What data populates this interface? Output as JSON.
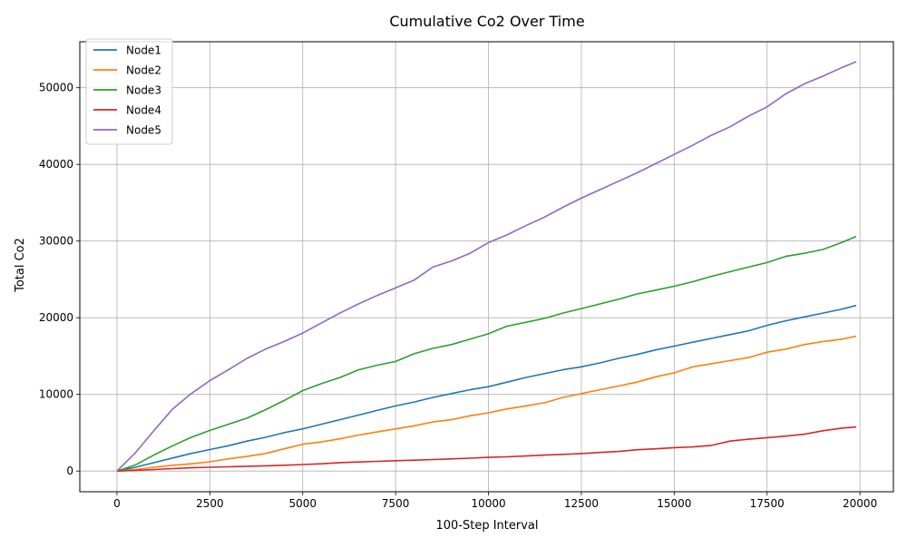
{
  "chart_data": {
    "type": "line",
    "title": "Cumulative Co2 Over Time",
    "xlabel": "100-Step Interval",
    "ylabel": "Total Co2",
    "xlim": [
      -1000,
      20900
    ],
    "ylim": [
      -2700,
      56000
    ],
    "grid": true,
    "legend_position": "top-left",
    "x_ticks": [
      0,
      2500,
      5000,
      7500,
      10000,
      12500,
      15000,
      17500,
      20000
    ],
    "x_tick_labels": [
      "0",
      "2500",
      "5000",
      "7500",
      "10000",
      "12500",
      "15000",
      "17500",
      "20000"
    ],
    "y_ticks": [
      0,
      10000,
      20000,
      30000,
      40000,
      50000
    ],
    "y_tick_labels": [
      "0",
      "10000",
      "20000",
      "30000",
      "40000",
      "50000"
    ],
    "x": [
      0,
      500,
      1000,
      1500,
      2000,
      2500,
      3000,
      3500,
      4000,
      4500,
      5000,
      5500,
      6000,
      6500,
      7000,
      7500,
      8000,
      8500,
      9000,
      9500,
      10000,
      10500,
      11000,
      11500,
      12000,
      12500,
      13000,
      13500,
      14000,
      14500,
      15000,
      15500,
      16000,
      16500,
      17000,
      17500,
      18000,
      18500,
      19000,
      19500,
      19900
    ],
    "series": [
      {
        "name": "Node1",
        "color": "#1f77b4",
        "values": [
          0,
          500,
          1100,
          1700,
          2300,
          2800,
          3300,
          3900,
          4400,
          5000,
          5500,
          6100,
          6700,
          7300,
          7900,
          8500,
          9000,
          9600,
          10100,
          10600,
          11000,
          11600,
          12200,
          12700,
          13200,
          13600,
          14100,
          14700,
          15200,
          15800,
          16300,
          16800,
          17300,
          17800,
          18300,
          19000,
          19600,
          20100,
          20600,
          21100,
          21600
        ]
      },
      {
        "name": "Node2",
        "color": "#ff7f0e",
        "values": [
          0,
          200,
          500,
          750,
          950,
          1200,
          1600,
          1900,
          2300,
          2900,
          3500,
          3800,
          4200,
          4700,
          5100,
          5500,
          5900,
          6400,
          6700,
          7200,
          7600,
          8100,
          8500,
          8900,
          9600,
          10100,
          10600,
          11100,
          11600,
          12300,
          12800,
          13600,
          14000,
          14400,
          14800,
          15500,
          15900,
          16500,
          16900,
          17200,
          17600
        ]
      },
      {
        "name": "Node3",
        "color": "#2ca02c",
        "values": [
          0,
          800,
          2100,
          3300,
          4400,
          5300,
          6100,
          6900,
          8000,
          9200,
          10500,
          11400,
          12200,
          13200,
          13800,
          14300,
          15300,
          16000,
          16500,
          17200,
          17900,
          18900,
          19400,
          19900,
          20600,
          21200,
          21800,
          22400,
          23100,
          23600,
          24100,
          24700,
          25400,
          26000,
          26600,
          27200,
          28000,
          28400,
          28900,
          29800,
          30600
        ]
      },
      {
        "name": "Node4",
        "color": "#d62728",
        "values": [
          0,
          80,
          200,
          320,
          420,
          500,
          560,
          620,
          680,
          760,
          850,
          950,
          1100,
          1180,
          1260,
          1350,
          1420,
          1500,
          1580,
          1680,
          1780,
          1860,
          1960,
          2080,
          2180,
          2280,
          2420,
          2560,
          2780,
          2900,
          3050,
          3150,
          3350,
          3900,
          4150,
          4350,
          4550,
          4800,
          5250,
          5600,
          5750
        ]
      },
      {
        "name": "Node5",
        "color": "#9467bd",
        "values": [
          0,
          2400,
          5300,
          8100,
          10100,
          11800,
          13200,
          14700,
          15900,
          16900,
          18000,
          19300,
          20600,
          21800,
          22900,
          23900,
          24900,
          26600,
          27400,
          28400,
          29800,
          30800,
          32000,
          33100,
          34400,
          35600,
          36700,
          37800,
          38900,
          40100,
          41300,
          42500,
          43800,
          44900,
          46300,
          47500,
          49200,
          50500,
          51500,
          52600,
          53400
        ]
      }
    ]
  }
}
